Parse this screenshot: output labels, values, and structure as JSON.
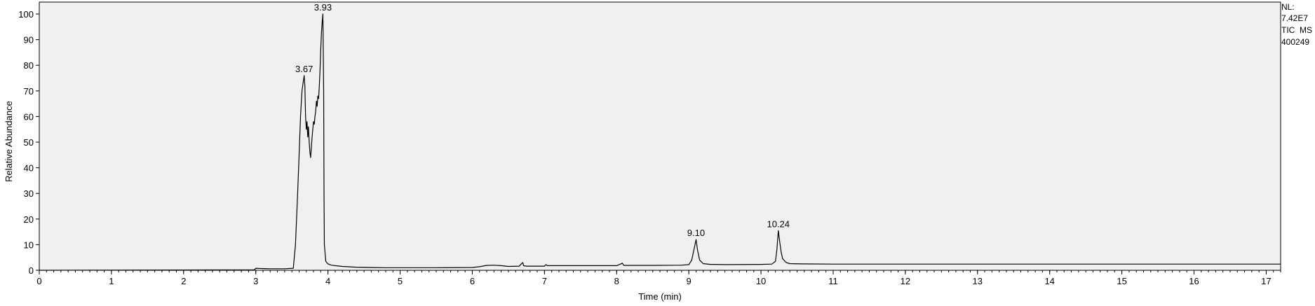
{
  "chart_data": {
    "type": "line",
    "xlabel": "Time (min)",
    "ylabel": "Relative Abundance",
    "xlim": [
      0,
      17.2
    ],
    "ylim": [
      0,
      102
    ],
    "x_ticks": [
      0,
      1,
      2,
      3,
      4,
      5,
      6,
      7,
      8,
      9,
      10,
      11,
      12,
      13,
      14,
      15,
      16,
      17
    ],
    "y_ticks": [
      0,
      10,
      20,
      30,
      40,
      50,
      60,
      70,
      80,
      90,
      100
    ],
    "minor_x_step": 0.1,
    "grid": false,
    "colors": {
      "plot_background": "#f0f0f0",
      "trace": "#000000",
      "axis": "#000000"
    },
    "info": {
      "line1": "NL:",
      "line2": "7.42E7",
      "line3": "TIC  MS",
      "line4": "400249"
    },
    "peak_labels": [
      {
        "text": "3.67",
        "x": 3.67,
        "y": 76
      },
      {
        "text": "3.93",
        "x": 3.93,
        "y": 100
      },
      {
        "text": "9.10",
        "x": 9.1,
        "y": 12
      },
      {
        "text": "10.24",
        "x": 10.24,
        "y": 15.5
      }
    ],
    "series": [
      {
        "x": [
          0,
          2.98,
          3.0,
          3.05,
          3.2,
          3.4,
          3.52,
          3.55,
          3.58,
          3.6,
          3.62,
          3.64,
          3.66,
          3.67,
          3.68,
          3.69,
          3.7,
          3.71,
          3.72,
          3.73,
          3.74,
          3.75,
          3.76,
          3.77,
          3.78,
          3.79,
          3.8,
          3.81,
          3.82,
          3.83,
          3.84,
          3.85,
          3.86,
          3.87,
          3.88,
          3.89,
          3.9,
          3.91,
          3.92,
          3.93,
          3.94,
          3.945,
          3.95,
          3.97,
          4.0,
          4.05,
          4.1,
          4.2,
          4.4,
          4.6,
          4.8,
          5.0,
          5.5,
          6.0,
          6.1,
          6.2,
          6.3,
          6.4,
          6.5,
          6.65,
          6.69,
          6.7,
          6.71,
          6.75,
          7.0,
          7.02,
          7.04,
          7.5,
          8.0,
          8.08,
          8.09,
          8.1,
          8.5,
          8.9,
          9.0,
          9.04,
          9.07,
          9.1,
          9.12,
          9.15,
          9.2,
          9.3,
          9.5,
          10.0,
          10.15,
          10.2,
          10.22,
          10.24,
          10.26,
          10.28,
          10.3,
          10.35,
          10.4,
          10.6,
          11.0,
          12.0,
          13.0,
          14.0,
          15.0,
          16.0,
          17.2
        ],
        "y": [
          0,
          0.2,
          0.8,
          0.7,
          0.6,
          0.6,
          0.8,
          10,
          30,
          45,
          60,
          70,
          74,
          76,
          72,
          60,
          55,
          58,
          52,
          56,
          50,
          46,
          44,
          48,
          52,
          55,
          58,
          57,
          60,
          62,
          66,
          64,
          68,
          67,
          72,
          78,
          86,
          93,
          97,
          100,
          70,
          30,
          10,
          3.5,
          2.5,
          2.0,
          1.8,
          1.5,
          1.2,
          1.1,
          1.0,
          1.0,
          1.0,
          1.1,
          1.4,
          1.9,
          2.0,
          1.8,
          1.5,
          1.6,
          2.8,
          3.0,
          1.8,
          1.6,
          1.6,
          2.2,
          1.8,
          1.8,
          1.8,
          2.8,
          2.2,
          1.9,
          1.9,
          2.0,
          2.2,
          4.0,
          8.0,
          12.0,
          8.0,
          4.0,
          2.6,
          2.3,
          2.2,
          2.3,
          2.4,
          3.5,
          8.0,
          15.5,
          11.0,
          7.0,
          4.5,
          3.0,
          2.6,
          2.5,
          2.4,
          2.4,
          2.4,
          2.4,
          2.4,
          2.4,
          2.4
        ]
      }
    ]
  }
}
